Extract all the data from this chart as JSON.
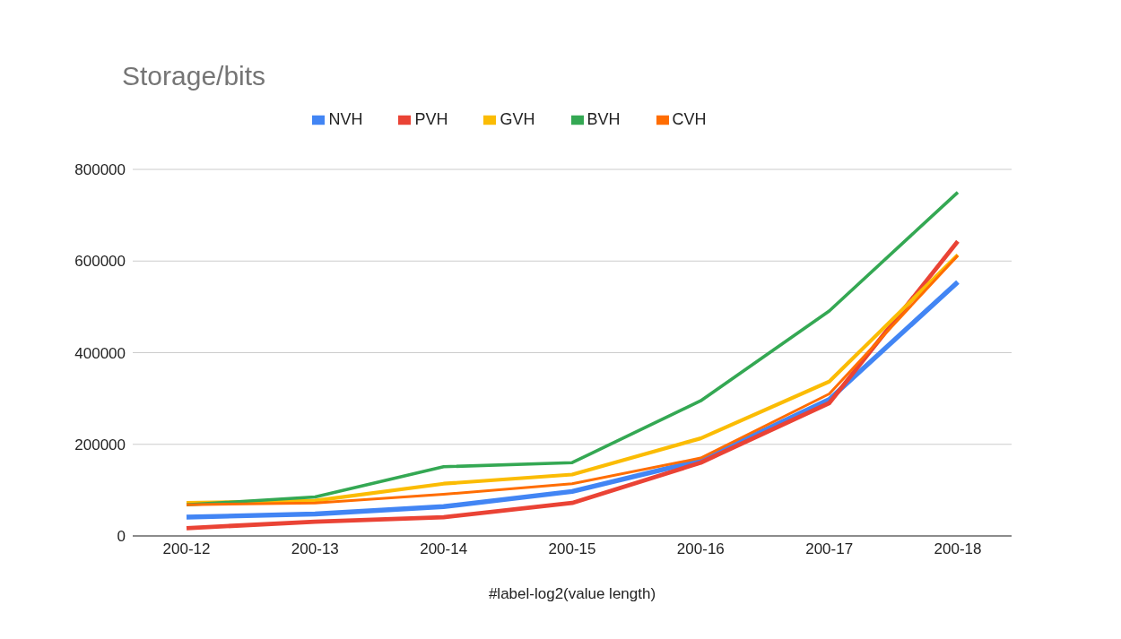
{
  "chart_data": {
    "type": "line",
    "title": "Storage/bits",
    "xlabel": "#label-log2(value length)",
    "categories": [
      "200-12",
      "200-13",
      "200-14",
      "200-15",
      "200-16",
      "200-17",
      "200-18"
    ],
    "series": [
      {
        "name": "NVH",
        "color": "#4285f4",
        "values": [
          41000,
          48000,
          64000,
          97000,
          165000,
          298000,
          554000
        ]
      },
      {
        "name": "PVH",
        "color": "#ea4335",
        "values": [
          17000,
          31000,
          41000,
          72000,
          160000,
          290000,
          643000
        ]
      },
      {
        "name": "GVH",
        "color": "#fbbc04",
        "values": [
          72000,
          77000,
          114000,
          134000,
          213000,
          337000,
          613000
        ]
      },
      {
        "name": "BVH",
        "color": "#34a853",
        "values": [
          68000,
          85000,
          151000,
          160000,
          295000,
          491000,
          750000
        ]
      },
      {
        "name": "CVH",
        "color": "#ff6d01",
        "values": [
          68000,
          72000,
          91000,
          114000,
          170000,
          310000,
          612000
        ]
      }
    ],
    "ylim": [
      0,
      800000
    ],
    "yticks": [
      0,
      200000,
      400000,
      600000,
      800000
    ],
    "grid": "y",
    "legend": "top",
    "marker": "none",
    "line_style": "solid"
  }
}
